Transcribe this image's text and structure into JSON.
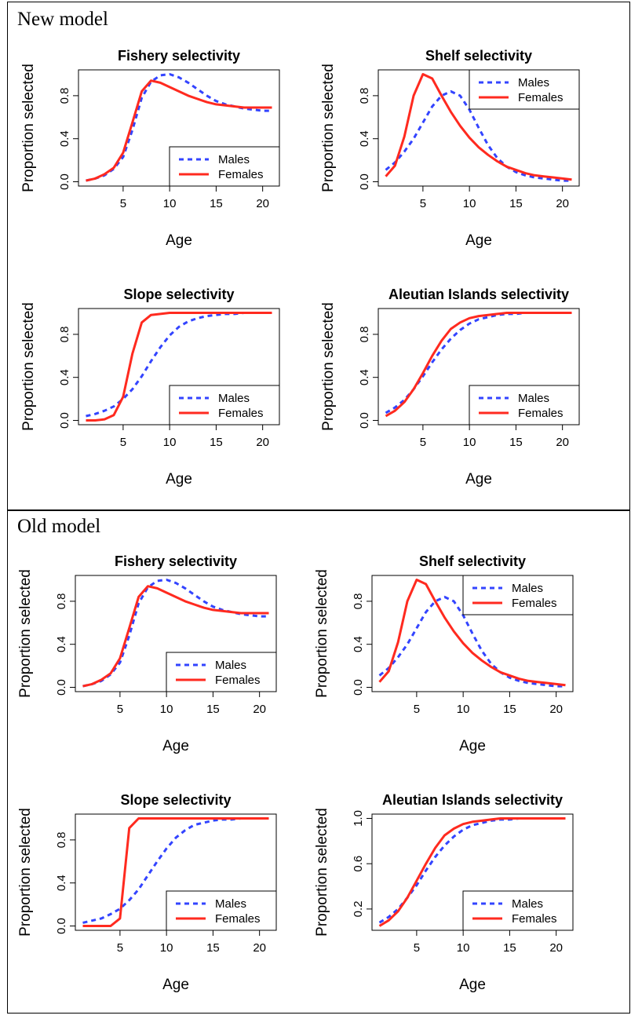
{
  "sections": [
    {
      "label": "New model"
    },
    {
      "label": "Old model"
    }
  ],
  "legend": {
    "males": "Males",
    "females": "Females"
  },
  "colors": {
    "males": "#3344ff",
    "females": "#ff2a1f"
  },
  "chart_data": [
    {
      "type": "line",
      "model": "New model",
      "title": "Fishery selectivity",
      "xlabel": "Age",
      "ylabel": "Proportion selected",
      "xlim": [
        1,
        21
      ],
      "ylim": [
        0,
        1
      ],
      "xticks": [
        "5",
        "10",
        "15",
        "20"
      ],
      "yticks": [
        "0.0",
        "0.4",
        "0.8"
      ],
      "legend_position": "bottom-right",
      "x": [
        1,
        2,
        3,
        4,
        5,
        6,
        7,
        8,
        9,
        10,
        11,
        12,
        13,
        14,
        15,
        16,
        17,
        18,
        19,
        20,
        21
      ],
      "series": [
        {
          "name": "Males",
          "style": "dashed",
          "values": [
            0.01,
            0.03,
            0.06,
            0.12,
            0.23,
            0.48,
            0.78,
            0.93,
            0.99,
            1.0,
            0.97,
            0.92,
            0.86,
            0.8,
            0.75,
            0.72,
            0.7,
            0.68,
            0.67,
            0.66,
            0.66
          ]
        },
        {
          "name": "Females",
          "style": "solid",
          "values": [
            0.01,
            0.03,
            0.07,
            0.13,
            0.27,
            0.55,
            0.84,
            0.94,
            0.92,
            0.88,
            0.84,
            0.8,
            0.77,
            0.74,
            0.72,
            0.71,
            0.7,
            0.69,
            0.69,
            0.69,
            0.69
          ]
        }
      ]
    },
    {
      "type": "line",
      "model": "New model",
      "title": "Shelf selectivity",
      "xlabel": "Age",
      "ylabel": "Proportion selected",
      "xlim": [
        1,
        21
      ],
      "ylim": [
        0,
        1
      ],
      "xticks": [
        "5",
        "10",
        "15",
        "20"
      ],
      "yticks": [
        "0.0",
        "0.4",
        "0.8"
      ],
      "legend_position": "top-right",
      "x": [
        1,
        2,
        3,
        4,
        5,
        6,
        7,
        8,
        9,
        10,
        11,
        12,
        13,
        14,
        15,
        16,
        17,
        18,
        19,
        20,
        21
      ],
      "series": [
        {
          "name": "Males",
          "style": "dashed",
          "values": [
            0.11,
            0.18,
            0.28,
            0.4,
            0.55,
            0.7,
            0.8,
            0.84,
            0.8,
            0.67,
            0.5,
            0.34,
            0.22,
            0.14,
            0.09,
            0.06,
            0.04,
            0.03,
            0.02,
            0.01,
            0.01
          ]
        },
        {
          "name": "Females",
          "style": "solid",
          "values": [
            0.05,
            0.15,
            0.42,
            0.8,
            1.0,
            0.96,
            0.8,
            0.65,
            0.52,
            0.41,
            0.32,
            0.25,
            0.19,
            0.14,
            0.11,
            0.08,
            0.06,
            0.05,
            0.04,
            0.03,
            0.02
          ]
        }
      ]
    },
    {
      "type": "line",
      "model": "New model",
      "title": "Slope selectivity",
      "xlabel": "Age",
      "ylabel": "Proportion selected",
      "xlim": [
        1,
        21
      ],
      "ylim": [
        0,
        1
      ],
      "xticks": [
        "5",
        "10",
        "15",
        "20"
      ],
      "yticks": [
        "0.0",
        "0.4",
        "0.8"
      ],
      "legend_position": "bottom-right",
      "x": [
        1,
        2,
        3,
        4,
        5,
        6,
        7,
        8,
        9,
        10,
        11,
        12,
        13,
        14,
        15,
        16,
        17,
        18,
        19,
        20,
        21
      ],
      "series": [
        {
          "name": "Males",
          "style": "dashed",
          "values": [
            0.04,
            0.06,
            0.09,
            0.13,
            0.2,
            0.29,
            0.41,
            0.55,
            0.68,
            0.79,
            0.87,
            0.92,
            0.95,
            0.97,
            0.98,
            0.99,
            0.99,
            1.0,
            1.0,
            1.0,
            1.0
          ]
        },
        {
          "name": "Females",
          "style": "solid",
          "values": [
            0.0,
            0.0,
            0.01,
            0.05,
            0.22,
            0.62,
            0.91,
            0.98,
            0.99,
            1.0,
            1.0,
            1.0,
            1.0,
            1.0,
            1.0,
            1.0,
            1.0,
            1.0,
            1.0,
            1.0,
            1.0
          ]
        }
      ]
    },
    {
      "type": "line",
      "model": "New model",
      "title": "Aleutian Islands selectivity",
      "xlabel": "Age",
      "ylabel": "Proportion selected",
      "xlim": [
        1,
        21
      ],
      "ylim": [
        0,
        1
      ],
      "xticks": [
        "5",
        "10",
        "15",
        "20"
      ],
      "yticks": [
        "0.0",
        "0.4",
        "0.8"
      ],
      "legend_position": "bottom-right",
      "x": [
        1,
        2,
        3,
        4,
        5,
        6,
        7,
        8,
        9,
        10,
        11,
        12,
        13,
        14,
        15,
        16,
        17,
        18,
        19,
        20,
        21
      ],
      "series": [
        {
          "name": "Males",
          "style": "dashed",
          "values": [
            0.07,
            0.12,
            0.19,
            0.29,
            0.41,
            0.54,
            0.66,
            0.76,
            0.84,
            0.9,
            0.94,
            0.96,
            0.98,
            0.99,
            0.99,
            1.0,
            1.0,
            1.0,
            1.0,
            1.0,
            1.0
          ]
        },
        {
          "name": "Females",
          "style": "solid",
          "values": [
            0.04,
            0.09,
            0.17,
            0.29,
            0.44,
            0.6,
            0.74,
            0.85,
            0.91,
            0.95,
            0.97,
            0.98,
            0.99,
            1.0,
            1.0,
            1.0,
            1.0,
            1.0,
            1.0,
            1.0,
            1.0
          ]
        }
      ]
    },
    {
      "type": "line",
      "model": "Old model",
      "title": "Fishery selectivity",
      "xlabel": "Age",
      "ylabel": "Proportion selected",
      "xlim": [
        1,
        21
      ],
      "ylim": [
        0,
        1
      ],
      "xticks": [
        "5",
        "10",
        "15",
        "20"
      ],
      "yticks": [
        "0.0",
        "0.4",
        "0.8"
      ],
      "legend_position": "bottom-right",
      "x": [
        1,
        2,
        3,
        4,
        5,
        6,
        7,
        8,
        9,
        10,
        11,
        12,
        13,
        14,
        15,
        16,
        17,
        18,
        19,
        20,
        21
      ],
      "series": [
        {
          "name": "Males",
          "style": "dashed",
          "values": [
            0.01,
            0.03,
            0.06,
            0.12,
            0.23,
            0.48,
            0.78,
            0.93,
            0.99,
            1.0,
            0.97,
            0.92,
            0.86,
            0.8,
            0.75,
            0.72,
            0.7,
            0.68,
            0.67,
            0.66,
            0.66
          ]
        },
        {
          "name": "Females",
          "style": "solid",
          "values": [
            0.01,
            0.03,
            0.07,
            0.13,
            0.27,
            0.55,
            0.84,
            0.94,
            0.92,
            0.88,
            0.84,
            0.8,
            0.77,
            0.74,
            0.72,
            0.71,
            0.7,
            0.69,
            0.69,
            0.69,
            0.69
          ]
        }
      ]
    },
    {
      "type": "line",
      "model": "Old model",
      "title": "Shelf selectivity",
      "xlabel": "Age",
      "ylabel": "Proportion selected",
      "xlim": [
        1,
        21
      ],
      "ylim": [
        0,
        1
      ],
      "xticks": [
        "5",
        "10",
        "15",
        "20"
      ],
      "yticks": [
        "0.0",
        "0.4",
        "0.8"
      ],
      "legend_position": "top-right",
      "x": [
        1,
        2,
        3,
        4,
        5,
        6,
        7,
        8,
        9,
        10,
        11,
        12,
        13,
        14,
        15,
        16,
        17,
        18,
        19,
        20,
        21
      ],
      "series": [
        {
          "name": "Males",
          "style": "dashed",
          "values": [
            0.11,
            0.18,
            0.28,
            0.4,
            0.55,
            0.7,
            0.8,
            0.84,
            0.8,
            0.67,
            0.5,
            0.34,
            0.22,
            0.14,
            0.09,
            0.06,
            0.04,
            0.03,
            0.02,
            0.01,
            0.01
          ]
        },
        {
          "name": "Females",
          "style": "solid",
          "values": [
            0.05,
            0.15,
            0.42,
            0.8,
            1.0,
            0.96,
            0.8,
            0.65,
            0.52,
            0.41,
            0.32,
            0.25,
            0.19,
            0.14,
            0.11,
            0.08,
            0.06,
            0.05,
            0.04,
            0.03,
            0.02
          ]
        }
      ]
    },
    {
      "type": "line",
      "model": "Old model",
      "title": "Slope selectivity",
      "xlabel": "Age",
      "ylabel": "Proportion selected",
      "xlim": [
        1,
        21
      ],
      "ylim": [
        0,
        1
      ],
      "xticks": [
        "5",
        "10",
        "15",
        "20"
      ],
      "yticks": [
        "0.0",
        "0.4",
        "0.8"
      ],
      "legend_position": "bottom-right",
      "x": [
        1,
        2,
        3,
        4,
        5,
        6,
        7,
        8,
        9,
        10,
        11,
        12,
        13,
        14,
        15,
        16,
        17,
        18,
        19,
        20,
        21
      ],
      "series": [
        {
          "name": "Males",
          "style": "dashed",
          "values": [
            0.03,
            0.05,
            0.07,
            0.11,
            0.16,
            0.24,
            0.34,
            0.47,
            0.6,
            0.72,
            0.82,
            0.89,
            0.94,
            0.96,
            0.98,
            0.99,
            0.99,
            1.0,
            1.0,
            1.0,
            1.0
          ]
        },
        {
          "name": "Females",
          "style": "solid",
          "values": [
            0.0,
            0.0,
            0.0,
            0.0,
            0.07,
            0.91,
            1.0,
            1.0,
            1.0,
            1.0,
            1.0,
            1.0,
            1.0,
            1.0,
            1.0,
            1.0,
            1.0,
            1.0,
            1.0,
            1.0,
            1.0
          ]
        }
      ]
    },
    {
      "type": "line",
      "model": "Old model",
      "title": "Aleutian Islands selectivity",
      "xlabel": "Age",
      "ylabel": "Proportion selected",
      "xlim": [
        1,
        21
      ],
      "ylim": [
        0.05,
        1.0
      ],
      "xticks": [
        "5",
        "10",
        "15",
        "20"
      ],
      "yticks": [
        "0.2",
        "0.6",
        "1.0"
      ],
      "legend_position": "bottom-right",
      "x": [
        1,
        2,
        3,
        4,
        5,
        6,
        7,
        8,
        9,
        10,
        11,
        12,
        13,
        14,
        15,
        16,
        17,
        18,
        19,
        20,
        21
      ],
      "series": [
        {
          "name": "Males",
          "style": "dashed",
          "values": [
            0.08,
            0.13,
            0.2,
            0.3,
            0.41,
            0.54,
            0.66,
            0.76,
            0.84,
            0.9,
            0.94,
            0.96,
            0.98,
            0.99,
            0.99,
            1.0,
            1.0,
            1.0,
            1.0,
            1.0,
            1.0
          ]
        },
        {
          "name": "Females",
          "style": "solid",
          "values": [
            0.05,
            0.1,
            0.18,
            0.3,
            0.45,
            0.6,
            0.74,
            0.85,
            0.91,
            0.95,
            0.97,
            0.98,
            0.99,
            1.0,
            1.0,
            1.0,
            1.0,
            1.0,
            1.0,
            1.0,
            1.0
          ]
        }
      ]
    }
  ]
}
